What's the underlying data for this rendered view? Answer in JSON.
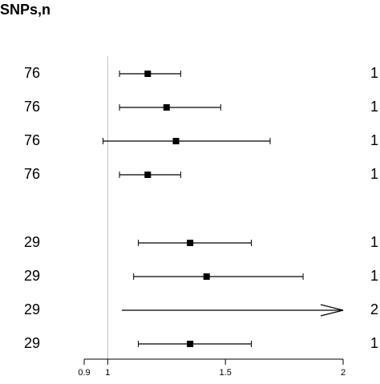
{
  "header": {
    "column_label": "SNPs,n"
  },
  "chart_data": {
    "type": "forest",
    "title": "",
    "xlabel": "",
    "ylabel": "",
    "xlim": [
      0.9,
      2
    ],
    "xticks": [
      0.9,
      1,
      1.5,
      2
    ],
    "xtick_labels": [
      "0.9",
      "1",
      "1.5",
      "2"
    ],
    "reference_line": 1,
    "grid": false,
    "rows": [
      {
        "snps": "76",
        "estimate": 1.17,
        "lower": 1.05,
        "upper": 1.31,
        "right_label": "1"
      },
      {
        "snps": "76",
        "estimate": 1.25,
        "lower": 1.05,
        "upper": 1.48,
        "right_label": "1"
      },
      {
        "snps": "76",
        "estimate": 1.29,
        "lower": 0.98,
        "upper": 1.69,
        "right_label": "1"
      },
      {
        "snps": "76",
        "estimate": 1.17,
        "lower": 1.05,
        "upper": 1.31,
        "right_label": "1"
      },
      {
        "snps": "29",
        "estimate": 1.35,
        "lower": 1.13,
        "upper": 1.61,
        "right_label": "1"
      },
      {
        "snps": "29",
        "estimate": 1.42,
        "lower": 1.11,
        "upper": 1.83,
        "right_label": "1"
      },
      {
        "snps": "29",
        "estimate": null,
        "lower": 1.06,
        "upper": 2.0,
        "truncated": true,
        "right_label": "2"
      },
      {
        "snps": "29",
        "estimate": 1.35,
        "lower": 1.13,
        "upper": 1.61,
        "right_label": "1"
      }
    ]
  }
}
